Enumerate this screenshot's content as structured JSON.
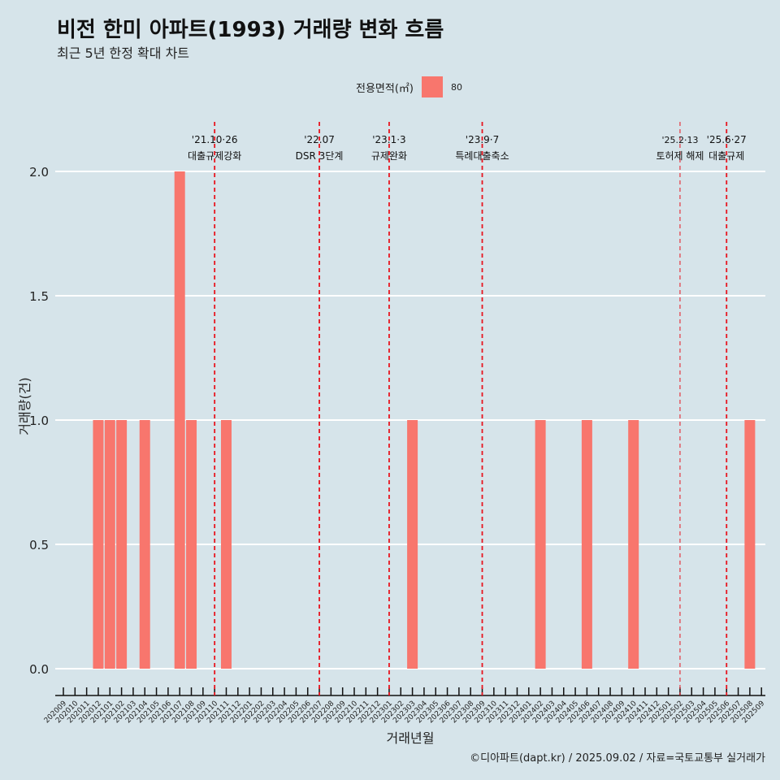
{
  "title": "비전 한미 아파트(1993) 거래량 변화 흐름",
  "subtitle": "최근 5년 한정 확대 차트",
  "caption": "©디아파트(dapt.kr) / 2025.09.02 / 자료=국토교통부 실거래가",
  "legend": {
    "title": "전용면적(㎡)",
    "items": [
      {
        "label": "80",
        "color": "#f8766d"
      }
    ]
  },
  "chart_data": {
    "type": "bar",
    "title": "비전 한미 아파트(1993) 거래량 변화 흐름",
    "xlabel": "거래년월",
    "ylabel": "거래량(건)",
    "ylim": [
      0,
      2
    ],
    "yticks": [
      "0.0",
      "0.5",
      "1.0",
      "1.5",
      "2.0"
    ],
    "categories": [
      "202009",
      "202010",
      "202011",
      "202012",
      "202101",
      "202102",
      "202103",
      "202104",
      "202105",
      "202106",
      "202107",
      "202108",
      "202109",
      "202110",
      "202111",
      "202112",
      "202201",
      "202202",
      "202203",
      "202204",
      "202205",
      "202206",
      "202207",
      "202208",
      "202209",
      "202210",
      "202211",
      "202212",
      "202301",
      "202302",
      "202303",
      "202304",
      "202305",
      "202306",
      "202307",
      "202308",
      "202309",
      "202310",
      "202311",
      "202312",
      "202401",
      "202402",
      "202403",
      "202404",
      "202405",
      "202406",
      "202407",
      "202408",
      "202409",
      "202410",
      "202411",
      "202412",
      "202501",
      "202502",
      "202503",
      "202504",
      "202505",
      "202506",
      "202507",
      "202508",
      "202509"
    ],
    "series": [
      {
        "name": "80",
        "values": [
          0,
          0,
          0,
          1,
          1,
          1,
          0,
          1,
          0,
          0,
          2,
          1,
          0,
          0,
          1,
          0,
          0,
          0,
          0,
          0,
          0,
          0,
          0,
          0,
          0,
          0,
          0,
          0,
          0,
          0,
          1,
          0,
          0,
          0,
          0,
          0,
          0,
          0,
          0,
          0,
          0,
          1,
          0,
          0,
          0,
          1,
          0,
          0,
          0,
          1,
          0,
          0,
          0,
          0,
          0,
          0,
          0,
          0,
          0,
          1,
          0
        ]
      }
    ],
    "annotations": [
      {
        "month": "202110",
        "date": "'21.10·26",
        "label": "대출규제강화",
        "thin": false
      },
      {
        "month": "202207",
        "date": "'22.07",
        "label": "DSR 3단계",
        "thin": false
      },
      {
        "month": "202301",
        "date": "'23.1·3",
        "label": "규제완화",
        "thin": false
      },
      {
        "month": "202309",
        "date": "'23.9·7",
        "label": "특례대출축소",
        "thin": false
      },
      {
        "month": "202502",
        "date": "'25.2·13",
        "label": "토허제 해제",
        "thin": true
      },
      {
        "month": "202506",
        "date": "'25.6·27",
        "label": "대출규제",
        "thin": false
      }
    ],
    "grid": true,
    "legend_position": "top"
  }
}
